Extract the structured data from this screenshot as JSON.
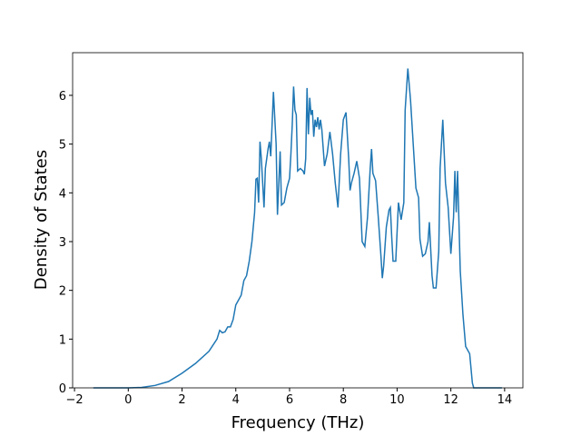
{
  "chart_data": {
    "type": "line",
    "xlabel": "Frequency (THz)",
    "ylabel": "Density of States",
    "x": [
      -1.3,
      -0.5,
      0,
      0.5,
      1,
      1.5,
      2,
      2.5,
      3,
      3.3,
      3.4,
      3.5,
      3.6,
      3.7,
      3.8,
      3.9,
      4.0,
      4.1,
      4.2,
      4.3,
      4.4,
      4.5,
      4.6,
      4.7,
      4.75,
      4.8,
      4.85,
      4.9,
      4.95,
      5.0,
      5.05,
      5.1,
      5.2,
      5.25,
      5.3,
      5.35,
      5.4,
      5.5,
      5.55,
      5.6,
      5.65,
      5.7,
      5.8,
      5.9,
      6.0,
      6.05,
      6.1,
      6.15,
      6.2,
      6.25,
      6.3,
      6.4,
      6.5,
      6.55,
      6.6,
      6.65,
      6.7,
      6.75,
      6.8,
      6.85,
      6.9,
      6.95,
      7.0,
      7.05,
      7.1,
      7.15,
      7.2,
      7.3,
      7.4,
      7.5,
      7.6,
      7.7,
      7.8,
      7.9,
      8.0,
      8.1,
      8.2,
      8.25,
      8.3,
      8.4,
      8.5,
      8.6,
      8.7,
      8.8,
      8.9,
      9.0,
      9.05,
      9.1,
      9.2,
      9.3,
      9.4,
      9.45,
      9.5,
      9.6,
      9.7,
      9.75,
      9.8,
      9.85,
      9.95,
      10.05,
      10.15,
      10.25,
      10.3,
      10.4,
      10.5,
      10.6,
      10.7,
      10.8,
      10.85,
      10.95,
      11.05,
      11.15,
      11.2,
      11.3,
      11.35,
      11.45,
      11.55,
      11.6,
      11.7,
      11.8,
      11.9,
      12.0,
      12.1,
      12.15,
      12.2,
      12.25,
      12.35,
      12.45,
      12.55,
      12.7,
      12.8,
      12.85,
      13.5,
      13.9
    ],
    "series": [
      {
        "color": "#1f77b4",
        "values": [
          0,
          0,
          0,
          0.01,
          0.05,
          0.13,
          0.3,
          0.5,
          0.75,
          1.0,
          1.18,
          1.13,
          1.15,
          1.25,
          1.25,
          1.4,
          1.7,
          1.8,
          1.9,
          2.2,
          2.3,
          2.6,
          3.0,
          3.6,
          4.28,
          4.3,
          3.8,
          5.05,
          4.7,
          4.2,
          3.7,
          4.5,
          4.9,
          5.05,
          4.75,
          5.4,
          6.07,
          5.0,
          3.55,
          4.2,
          4.85,
          3.75,
          3.8,
          4.1,
          4.3,
          4.8,
          5.4,
          6.18,
          5.7,
          5.6,
          4.45,
          4.5,
          4.45,
          4.38,
          4.7,
          6.15,
          5.2,
          5.95,
          5.6,
          5.7,
          5.15,
          5.5,
          5.35,
          5.55,
          5.3,
          5.5,
          5.3,
          4.55,
          4.8,
          5.25,
          4.8,
          4.2,
          3.7,
          4.8,
          5.5,
          5.65,
          4.7,
          4.05,
          4.2,
          4.4,
          4.65,
          4.3,
          3.0,
          2.9,
          3.5,
          4.5,
          4.9,
          4.4,
          4.25,
          3.5,
          2.7,
          2.25,
          2.5,
          3.3,
          3.65,
          3.7,
          3.1,
          2.6,
          2.6,
          3.8,
          3.45,
          3.8,
          5.7,
          6.55,
          5.9,
          5.0,
          4.1,
          3.9,
          3.05,
          2.7,
          2.75,
          3.0,
          3.4,
          2.3,
          2.05,
          2.05,
          2.8,
          4.5,
          5.5,
          4.2,
          3.7,
          2.75,
          3.5,
          4.45,
          3.6,
          4.45,
          2.4,
          1.5,
          0.85,
          0.7,
          0.1,
          0,
          0,
          0
        ]
      }
    ],
    "xlim": [
      -2.07,
      14.68
    ],
    "ylim": [
      0,
      6.875
    ],
    "xticks": [
      {
        "value": -2,
        "label": "−2"
      },
      0,
      2,
      4,
      6,
      8,
      10,
      12,
      14
    ],
    "yticks": [
      0,
      1,
      2,
      3,
      4,
      5,
      6
    ]
  }
}
